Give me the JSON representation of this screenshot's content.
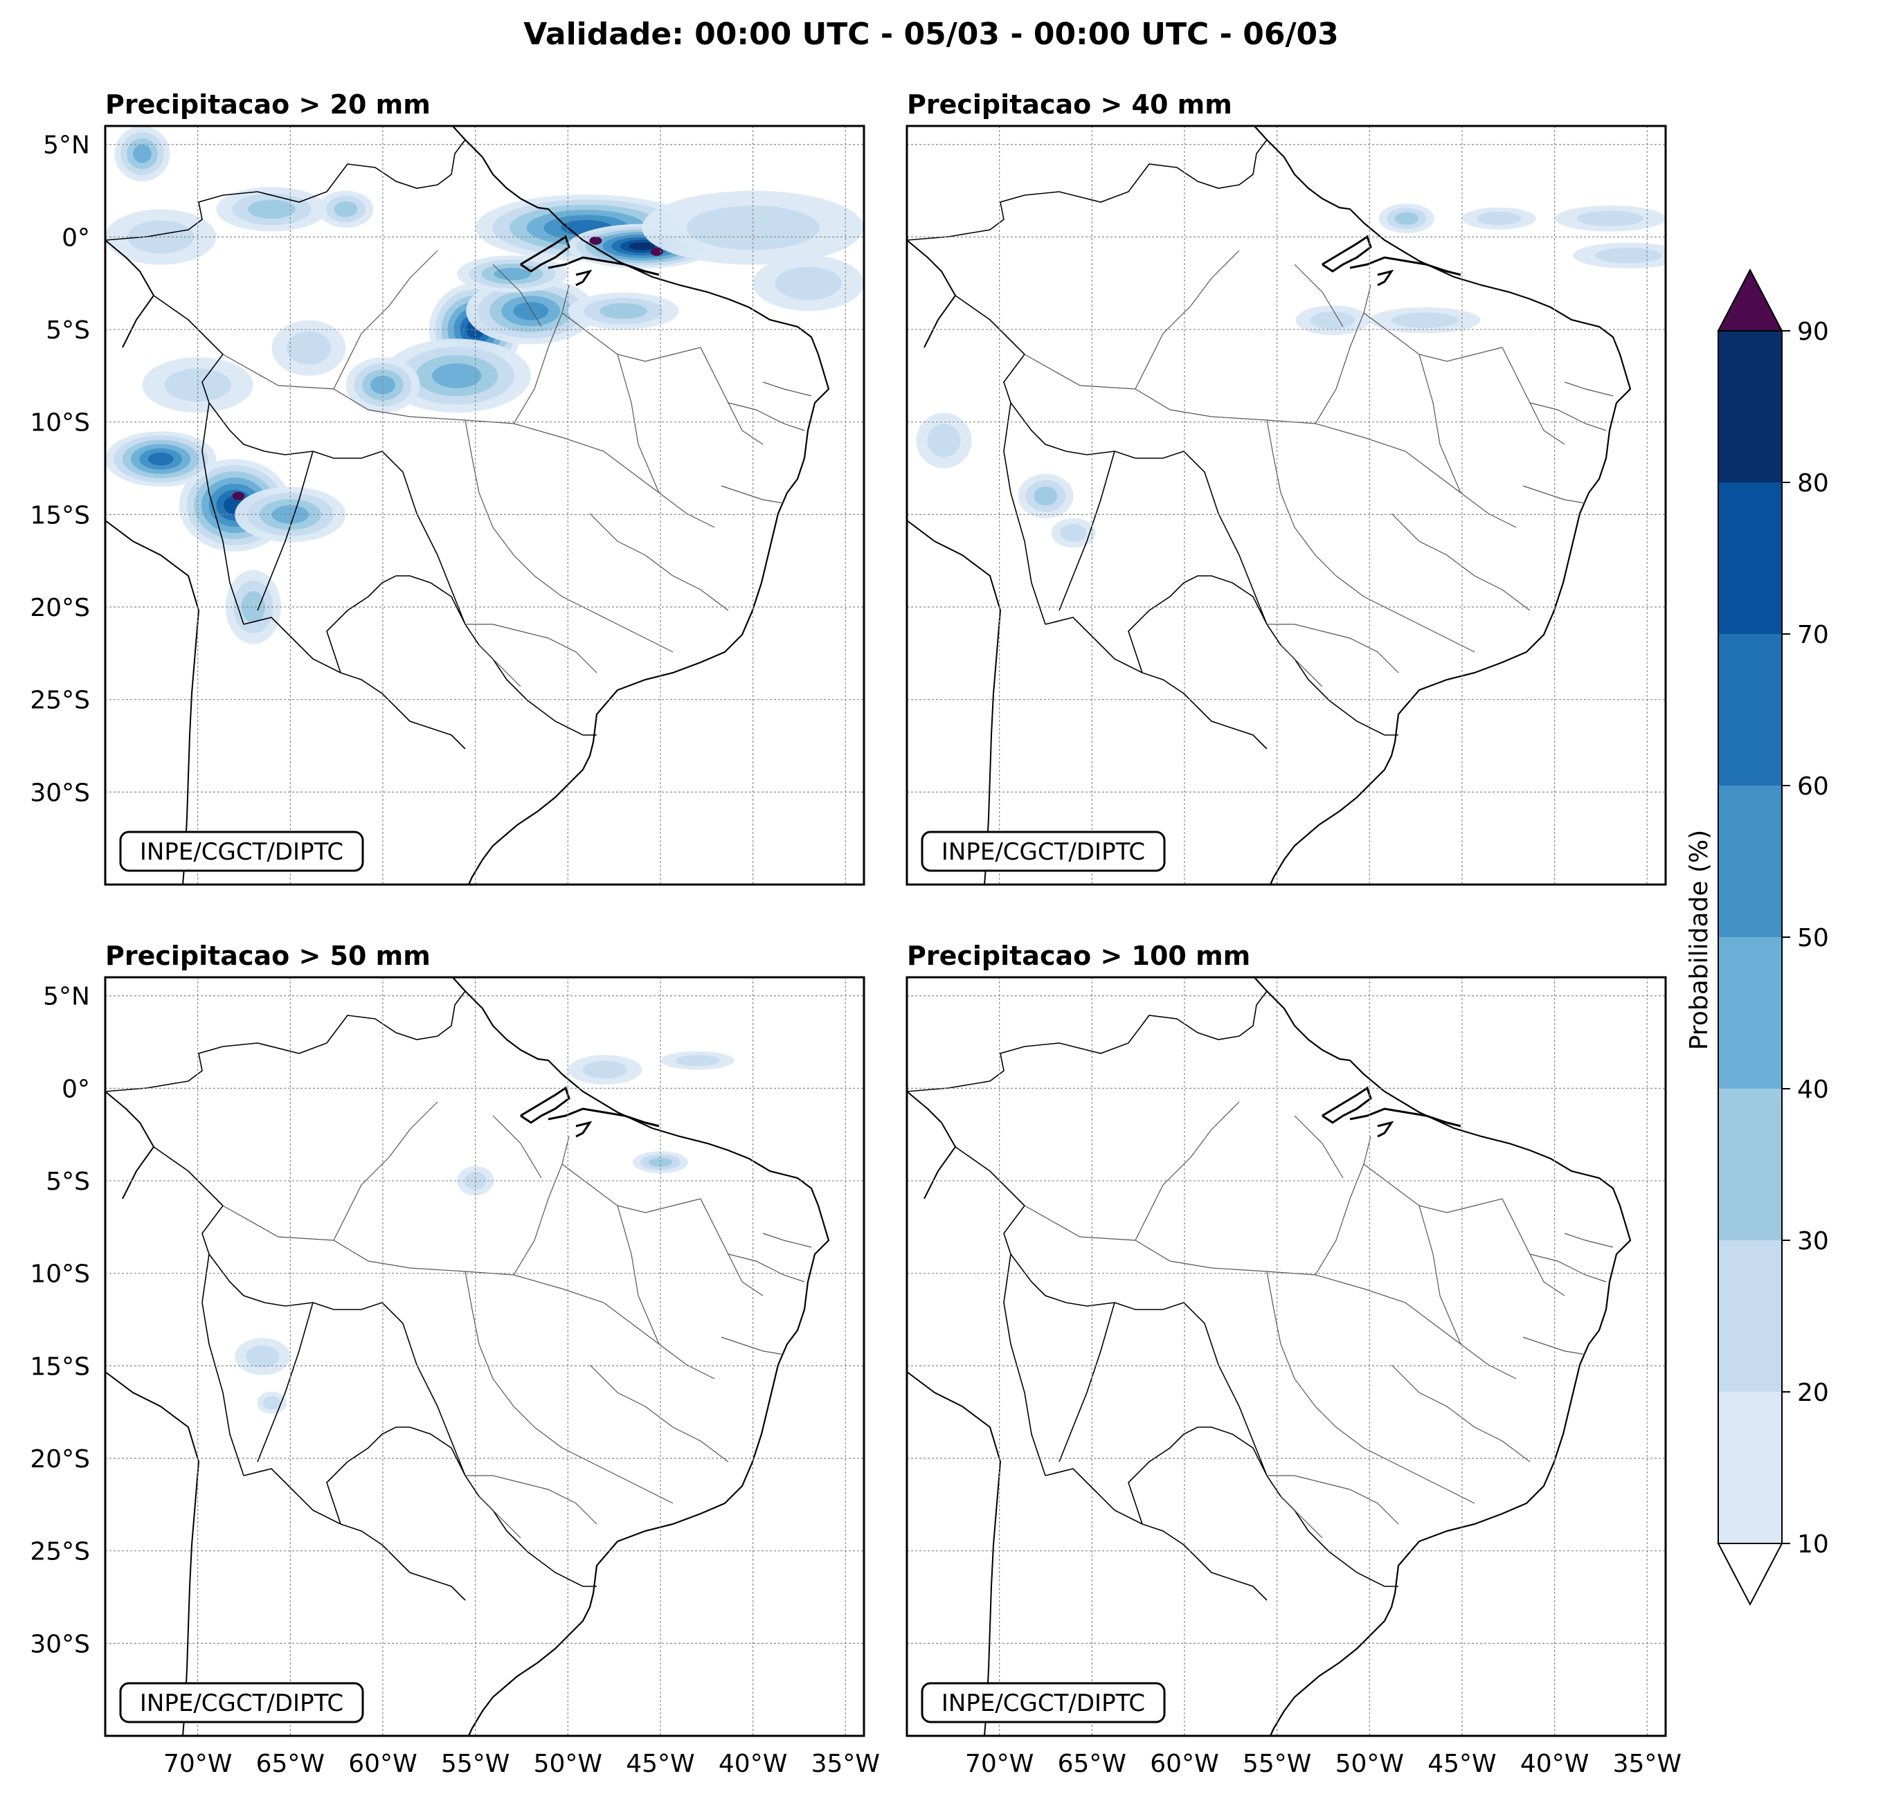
{
  "figure": {
    "title": "Validade: 00:00 UTC - 05/03 - 00:00 UTC - 06/03"
  },
  "panels": [
    {
      "id": "p20",
      "title": "Precipitacao > 20 mm",
      "credit": "INPE/CGCT/DIPTC"
    },
    {
      "id": "p40",
      "title": "Precipitacao > 40 mm",
      "credit": "INPE/CGCT/DIPTC"
    },
    {
      "id": "p50",
      "title": "Precipitacao > 50 mm",
      "credit": "INPE/CGCT/DIPTC"
    },
    {
      "id": "p100",
      "title": "Precipitacao > 100 mm",
      "credit": "INPE/CGCT/DIPTC"
    }
  ],
  "axes": {
    "lat_ticks": [
      5,
      0,
      -5,
      -10,
      -15,
      -20,
      -25,
      -30
    ],
    "lat_labels": [
      "5°N",
      "0°",
      "5°S",
      "10°S",
      "15°S",
      "20°S",
      "25°S",
      "30°S"
    ],
    "lon_ticks": [
      -70,
      -65,
      -60,
      -55,
      -50,
      -45,
      -40,
      -35
    ],
    "lon_labels": [
      "70°W",
      "65°W",
      "60°W",
      "55°W",
      "50°W",
      "45°W",
      "40°W",
      "35°W"
    ],
    "lon_range": [
      -75,
      -34
    ],
    "lat_range": [
      -35,
      6
    ]
  },
  "colorbar": {
    "label": "Probabilidade (%)",
    "levels": [
      10,
      20,
      30,
      40,
      50,
      60,
      70,
      80,
      90
    ],
    "colors": [
      "#dbe9f6",
      "#c6dbef",
      "#9ecae1",
      "#6baed6",
      "#4292c6",
      "#2171b5",
      "#08519c",
      "#08306b"
    ],
    "over_color": "#4d0b4d",
    "under_color": "#ffffff"
  },
  "chart_data": {
    "type": "heatmap",
    "variable": "Probabilidade (%)",
    "panels": [
      {
        "threshold": "Precipitacao > 20 mm",
        "blobs": [
          {
            "lon": -49,
            "lat": 0.5,
            "rx": 6,
            "ry": 1.8,
            "prob": 60
          },
          {
            "lon": -46,
            "lat": -0.5,
            "rx": 4,
            "ry": 1.2,
            "prob": 80
          },
          {
            "lon": -40,
            "lat": 0.5,
            "rx": 6,
            "ry": 2,
            "prob": 20
          },
          {
            "lon": -37,
            "lat": -2.5,
            "rx": 3,
            "ry": 1.5,
            "prob": 20
          },
          {
            "lon": -55,
            "lat": -5,
            "rx": 2.5,
            "ry": 2.5,
            "prob": 70
          },
          {
            "lon": -52,
            "lat": -4,
            "rx": 3.5,
            "ry": 1.8,
            "prob": 50
          },
          {
            "lon": -56,
            "lat": -7.5,
            "rx": 4,
            "ry": 2,
            "prob": 40
          },
          {
            "lon": -60,
            "lat": -8,
            "rx": 2,
            "ry": 1.5,
            "prob": 40
          },
          {
            "lon": -53,
            "lat": -2,
            "rx": 3,
            "ry": 1,
            "prob": 40
          },
          {
            "lon": -47,
            "lat": -4,
            "rx": 3,
            "ry": 1,
            "prob": 30
          },
          {
            "lon": -66,
            "lat": 1.5,
            "rx": 3,
            "ry": 1.2,
            "prob": 30
          },
          {
            "lon": -62,
            "lat": 1.5,
            "rx": 1.5,
            "ry": 1,
            "prob": 30
          },
          {
            "lon": -73,
            "lat": 4.5,
            "rx": 1.5,
            "ry": 1.5,
            "prob": 40
          },
          {
            "lon": -72,
            "lat": 0,
            "rx": 3,
            "ry": 1.5,
            "prob": 20
          },
          {
            "lon": -68,
            "lat": -14.5,
            "rx": 3,
            "ry": 2.5,
            "prob": 70
          },
          {
            "lon": -72,
            "lat": -12,
            "rx": 3,
            "ry": 1.5,
            "prob": 60
          },
          {
            "lon": -65,
            "lat": -15,
            "rx": 3,
            "ry": 1.5,
            "prob": 40
          },
          {
            "lon": -67,
            "lat": -20,
            "rx": 1.5,
            "ry": 2,
            "prob": 30
          },
          {
            "lon": -70,
            "lat": -8,
            "rx": 3,
            "ry": 1.5,
            "prob": 20
          },
          {
            "lon": -64,
            "lat": -6,
            "rx": 2,
            "ry": 1.5,
            "prob": 20
          }
        ],
        "peaks": [
          {
            "lon": -48.5,
            "lat": -0.2,
            "prob": 90
          },
          {
            "lon": -45.2,
            "lat": -0.8,
            "prob": 90
          },
          {
            "lon": -67.8,
            "lat": -14,
            "prob": 90
          }
        ]
      },
      {
        "threshold": "Precipitacao > 40 mm",
        "blobs": [
          {
            "lon": -48,
            "lat": 1,
            "rx": 1.5,
            "ry": 0.8,
            "prob": 30
          },
          {
            "lon": -43,
            "lat": 1,
            "rx": 2,
            "ry": 0.6,
            "prob": 20
          },
          {
            "lon": -37,
            "lat": 1,
            "rx": 3,
            "ry": 0.7,
            "prob": 20
          },
          {
            "lon": -36,
            "lat": -1,
            "rx": 3,
            "ry": 0.7,
            "prob": 20
          },
          {
            "lon": -52,
            "lat": -4.5,
            "rx": 2,
            "ry": 0.8,
            "prob": 20
          },
          {
            "lon": -47,
            "lat": -4.5,
            "rx": 3,
            "ry": 0.7,
            "prob": 20
          },
          {
            "lon": -67.5,
            "lat": -14,
            "rx": 1.5,
            "ry": 1.2,
            "prob": 30
          },
          {
            "lon": -66,
            "lat": -16,
            "rx": 1.2,
            "ry": 0.8,
            "prob": 20
          },
          {
            "lon": -73,
            "lat": -11,
            "rx": 1.5,
            "ry": 1.5,
            "prob": 20
          }
        ],
        "peaks": []
      },
      {
        "threshold": "Precipitacao > 50 mm",
        "blobs": [
          {
            "lon": -48,
            "lat": 1,
            "rx": 2,
            "ry": 0.8,
            "prob": 20
          },
          {
            "lon": -45,
            "lat": -4,
            "rx": 1.5,
            "ry": 0.6,
            "prob": 30
          },
          {
            "lon": -43,
            "lat": 1.5,
            "rx": 2,
            "ry": 0.5,
            "prob": 20
          },
          {
            "lon": -55,
            "lat": -5,
            "rx": 1,
            "ry": 0.8,
            "prob": 20
          },
          {
            "lon": -66.5,
            "lat": -14.5,
            "rx": 1.5,
            "ry": 1,
            "prob": 20
          },
          {
            "lon": -66,
            "lat": -17,
            "rx": 0.8,
            "ry": 0.6,
            "prob": 20
          }
        ],
        "peaks": []
      },
      {
        "threshold": "Precipitacao > 100 mm",
        "blobs": [],
        "peaks": []
      }
    ]
  }
}
